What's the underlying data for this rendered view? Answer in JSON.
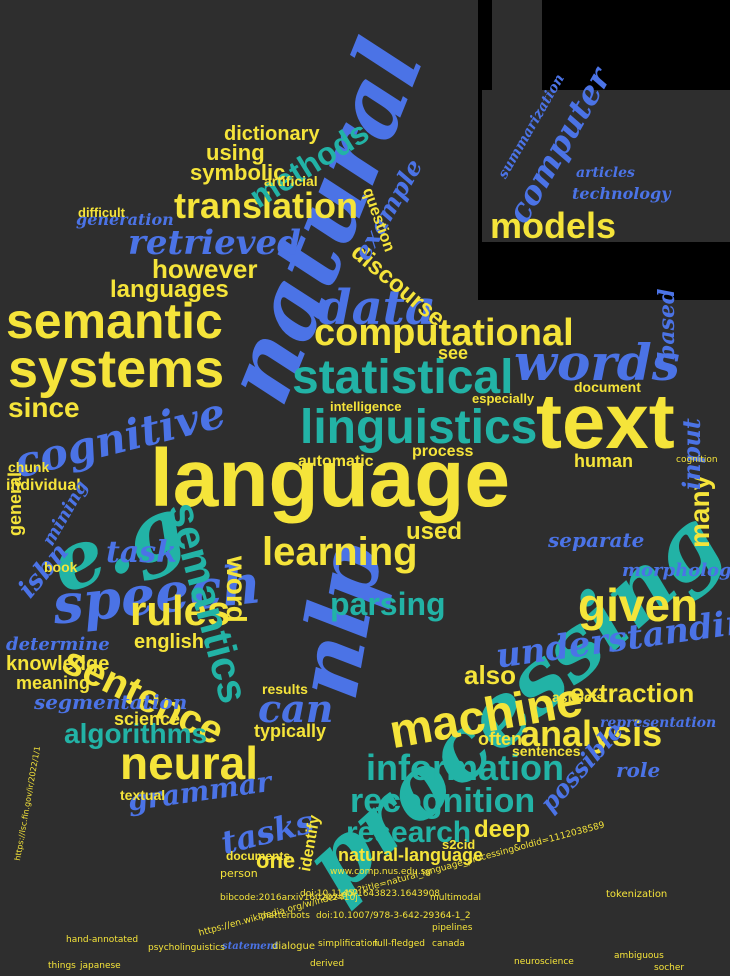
{
  "words": {
    "natural": "natural",
    "language": "language",
    "processing": "processing",
    "text": "text",
    "nlp": "nlp",
    "eg": "e.g",
    "speech": "speech",
    "semantic": "semantic",
    "systems": "systems",
    "linguistics": "linguistics",
    "statistical": "statistical",
    "computational": "computational",
    "words": "words",
    "data": "data",
    "learning": "learning",
    "machine": "machine",
    "neural": "neural",
    "information": "information",
    "recognition": "recognition",
    "research": "research",
    "analysis": "analysis",
    "given": "given",
    "rules": "rules",
    "sentence": "sentence",
    "semantics": "semantics",
    "understanding": "understanding",
    "models": "models",
    "computer": "computer",
    "translation": "translation",
    "retrieved": "retrieved",
    "methods": "methods",
    "cognitive": "cognitive",
    "parsing": "parsing",
    "algorithms": "algorithms",
    "tasks": "tasks",
    "task": "task",
    "grammar": "grammar",
    "can": "can",
    "since": "since",
    "however": "however",
    "languages": "languages",
    "extraction": "extraction",
    "deep": "deep",
    "discourse": "discourse",
    "example": "example",
    "dictionary": "dictionary",
    "using": "using",
    "symbolic": "symbolic",
    "isbn": "isbn",
    "knowledge": "knowledge",
    "meaning": "meaning",
    "segmentation": "segmentation",
    "english": "english",
    "used": "used",
    "many": "many",
    "input": "input",
    "based": "based",
    "also": "also",
    "often": "often",
    "sentences": "sentences",
    "human": "human",
    "results": "results",
    "science": "science",
    "typically": "typically",
    "natural_language": "natural-language",
    "morphology": "morphology",
    "possible": "possible",
    "representation": "representation",
    "role": "role",
    "document": "document",
    "intelligence": "intelligence",
    "automatic": "automatic",
    "process": "process",
    "book": "book",
    "general": "general",
    "individual": "individual",
    "determine": "determine",
    "mining": "mining",
    "one": "one",
    "identify": "identify",
    "documents": "documents",
    "technology": "technology",
    "summarization": "summarization",
    "articles": "articles",
    "generation": "generation",
    "difficult": "difficult",
    "artificial": "artificial",
    "question": "question",
    "word": "word",
    "see": "see",
    "especially": "especially",
    "separate": "separate",
    "aspects": "aspects",
    "chunk": "chunk",
    "textual": "textual",
    "s2cid": "s2cid",
    "url1": "https://en.wikipedia.org/w/index.php?title=natural_language_processing&oldid=1112038589",
    "url2": "https://lsc.fin.gov/ir/2022/1/1",
    "doi1": "doi:10.1007/978-3-642-29364-1_2",
    "doi2": "doi:10.1145/1643823.1643908",
    "bibcode": "bibcode:2016arxiv160202410j",
    "web": "www.comp.nus.edu.sg",
    "statement": "statement",
    "dialogue": "dialogue",
    "simplification": "simplification",
    "fullfledged": "full-fledged",
    "canada": "canada",
    "pipelines": "pipelines",
    "multimodal": "multimodal",
    "hand_annotated": "hand-annotated",
    "psycholinguistics": "psycholinguistics",
    "chatterbots": "chatterbots",
    "person": "person",
    "cognitivism": "cognition",
    "ambiguous": "ambiguous",
    "japanese": "japanese",
    "things": "things",
    "derived": "derived",
    "neuroscience": "neuroscience",
    "socher": "socher",
    "tokenization": "tokenization"
  },
  "colors": {
    "yellow": "#f5e43a",
    "blue": "#4b73e6",
    "teal": "#22b3a6",
    "background": "#2e2e2e"
  }
}
